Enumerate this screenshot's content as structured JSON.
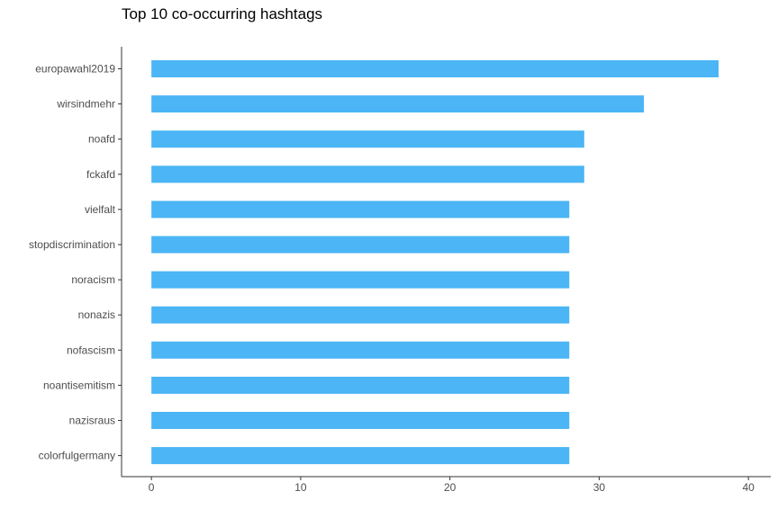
{
  "chart_data": {
    "type": "bar",
    "orientation": "horizontal",
    "title": "Top 10 co-occurring hashtags",
    "xlabel": "",
    "ylabel": "",
    "categories": [
      "europawahl2019",
      "wirsindmehr",
      "noafd",
      "fckafd",
      "vielfalt",
      "stopdiscrimination",
      "noracism",
      "nonazis",
      "nofascism",
      "noantisemitism",
      "nazisraus",
      "colorfulgermany"
    ],
    "values": [
      38,
      33,
      29,
      29,
      28,
      28,
      28,
      28,
      28,
      28,
      28,
      28
    ],
    "xlim": [
      -2,
      41.5
    ],
    "x_ticks": [
      "0",
      "10",
      "20",
      "30",
      "40"
    ],
    "grid": false,
    "legend": "none",
    "bar_color": "#4bb5f5",
    "axis_color": "#333333",
    "tick_label_color": "#4d4d4d"
  }
}
